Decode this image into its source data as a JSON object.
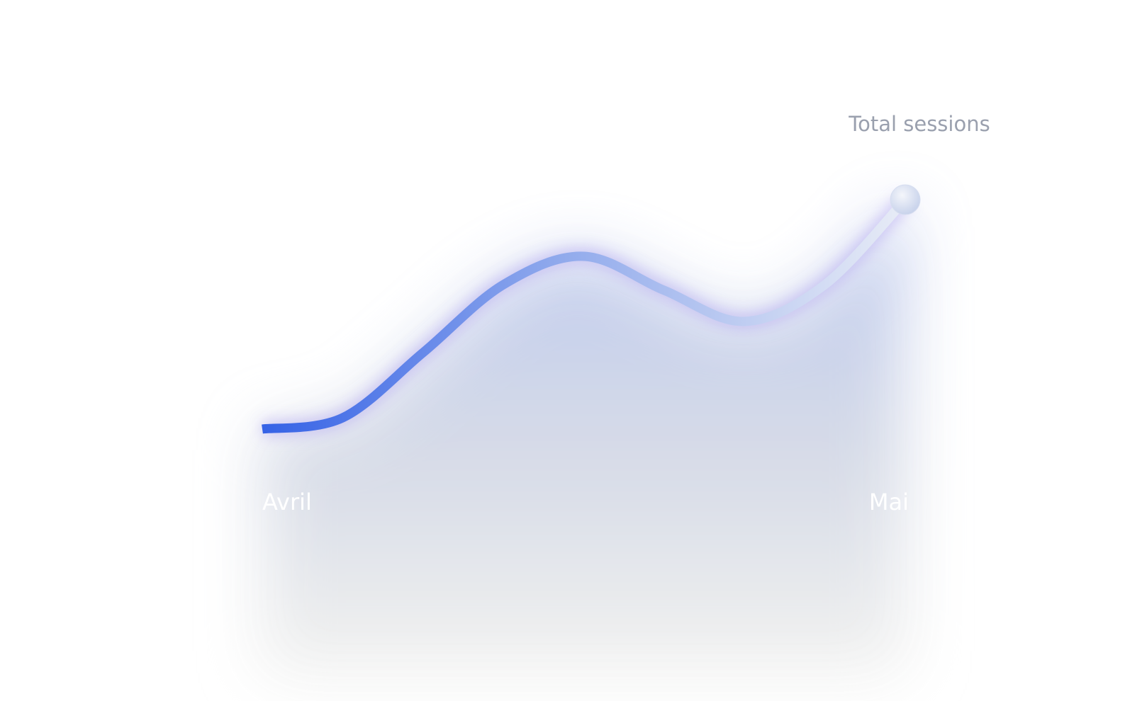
{
  "chart_data": {
    "type": "line",
    "title": "Total sessions",
    "categories": [
      "Avril",
      null,
      null,
      null,
      null,
      null,
      null,
      null,
      "Mai"
    ],
    "series": [
      {
        "name": null,
        "color": "#3a66e8",
        "values": [
          11,
          15,
          38,
          62,
          72,
          60,
          49,
          62,
          92
        ]
      }
    ],
    "ylim": [
      0,
      100
    ]
  }
}
